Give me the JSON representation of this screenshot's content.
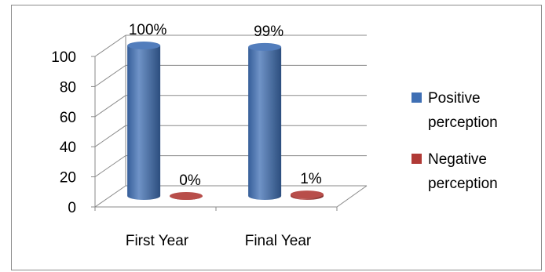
{
  "chart_data": {
    "type": "bar",
    "style": "3d-cylinder",
    "categories": [
      "First Year",
      "Final Year"
    ],
    "series": [
      {
        "name": "Positive perception",
        "color": "#3f6fb4",
        "values": [
          100,
          99
        ],
        "labels": [
          "100%",
          "99%"
        ]
      },
      {
        "name": "Negative perception",
        "color": "#b03a36",
        "values": [
          0,
          1
        ],
        "labels": [
          "0%",
          "1%"
        ]
      }
    ],
    "yticks": [
      "0",
      "20",
      "40",
      "60",
      "80",
      "100"
    ],
    "ylim": [
      0,
      100
    ],
    "grid": true,
    "legend_position": "right"
  }
}
